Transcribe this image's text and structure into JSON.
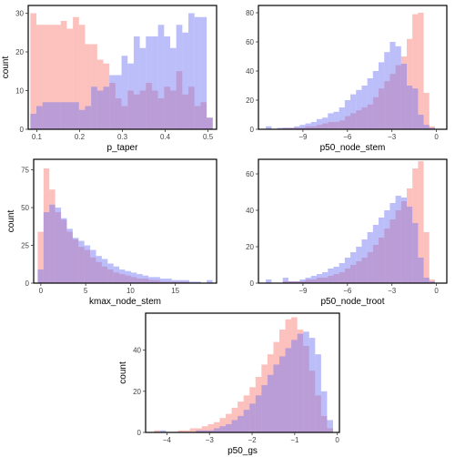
{
  "colors": {
    "series_a": "#f8766d",
    "series_b": "#6a6ff5",
    "overlap_alpha": 0.45,
    "frame": "#000000",
    "tick_text": "#444444"
  },
  "chart_data": [
    {
      "type": "bar",
      "variant": "overlaid-histogram",
      "xlabel": "p_taper",
      "ylabel": "count",
      "xlim": [
        0.08,
        0.52
      ],
      "ylim": [
        0,
        32
      ],
      "xticks": [
        0.1,
        0.2,
        0.3,
        0.4,
        0.5
      ],
      "xtick_labels": [
        "0.1",
        "0.2",
        "0.3",
        "0.4",
        "0.5"
      ],
      "yticks": [
        0,
        10,
        20,
        30
      ],
      "bin_start": 0.085,
      "bin_width": 0.0142,
      "series": [
        {
          "values": [
            30,
            27,
            27,
            27,
            27,
            28,
            26,
            29,
            27,
            22,
            22,
            18,
            17,
            12,
            8,
            6,
            10,
            9,
            10,
            12,
            10,
            8,
            11,
            10,
            15,
            9,
            11,
            6,
            7,
            3
          ]
        },
        {
          "values": [
            4,
            6,
            7,
            7,
            7,
            7,
            7,
            7,
            5,
            6,
            11,
            10,
            11,
            14,
            14,
            19,
            17,
            24,
            21,
            24,
            24,
            27,
            24,
            21,
            27,
            25,
            30,
            29,
            29,
            3
          ]
        }
      ]
    },
    {
      "type": "bar",
      "variant": "overlaid-histogram",
      "xlabel": "p50_node_stem",
      "ylabel": "",
      "xlim": [
        -12,
        0.7
      ],
      "ylim": [
        0,
        85
      ],
      "xticks": [
        -9,
        -6,
        -3,
        0
      ],
      "xtick_labels": [
        "−9",
        "−6",
        "−3",
        "0"
      ],
      "yticks": [
        0,
        20,
        40,
        60,
        80
      ],
      "bin_start": -11.5,
      "bin_width": 0.38,
      "series": [
        {
          "values": [
            0,
            0,
            0,
            1,
            1,
            1,
            1,
            2,
            2,
            3,
            4,
            5,
            5,
            6,
            9,
            11,
            13,
            15,
            17,
            22,
            28,
            33,
            38,
            44,
            50,
            62,
            79,
            80,
            25,
            2
          ]
        },
        {
          "values": [
            2,
            0,
            1,
            1,
            1,
            2,
            3,
            4,
            5,
            7,
            8,
            11,
            12,
            15,
            20,
            24,
            27,
            30,
            35,
            40,
            46,
            53,
            60,
            57,
            45,
            30,
            28,
            10,
            3,
            1
          ]
        }
      ]
    },
    {
      "type": "bar",
      "variant": "overlaid-histogram",
      "xlabel": "kmax_node_stem",
      "ylabel": "count",
      "xlim": [
        -0.8,
        19.6
      ],
      "ylim": [
        0,
        82
      ],
      "xticks": [
        0,
        5,
        10,
        15
      ],
      "xtick_labels": [
        "0",
        "5",
        "10",
        "15"
      ],
      "yticks": [
        0,
        25,
        50,
        75
      ],
      "bin_start": -0.35,
      "bin_width": 0.65,
      "series": [
        {
          "values": [
            34,
            76,
            62,
            47,
            42,
            34,
            29,
            24,
            22,
            17,
            14,
            11,
            9,
            7,
            6,
            5,
            4,
            3,
            3,
            2,
            2,
            1,
            1,
            1,
            1,
            1,
            0,
            0,
            0,
            0
          ]
        },
        {
          "values": [
            9,
            47,
            52,
            50,
            43,
            36,
            30,
            28,
            25,
            22,
            18,
            16,
            13,
            11,
            9,
            8,
            7,
            6,
            5,
            4,
            4,
            3,
            3,
            2,
            2,
            2,
            1,
            1,
            0,
            2
          ]
        }
      ]
    },
    {
      "type": "bar",
      "variant": "overlaid-histogram",
      "xlabel": "p50_node_troot",
      "ylabel": "",
      "xlim": [
        -12,
        0.7
      ],
      "ylim": [
        0,
        68
      ],
      "xticks": [
        -9,
        -6,
        -3,
        0
      ],
      "xtick_labels": [
        "−9",
        "−6",
        "−3",
        "0"
      ],
      "yticks": [
        0,
        20,
        40,
        60
      ],
      "bin_start": -11.5,
      "bin_width": 0.38,
      "series": [
        {
          "values": [
            0,
            0,
            0,
            1,
            1,
            1,
            1,
            2,
            2,
            3,
            3,
            4,
            5,
            6,
            8,
            10,
            12,
            14,
            17,
            21,
            25,
            30,
            35,
            40,
            45,
            52,
            63,
            67,
            28,
            2
          ]
        },
        {
          "values": [
            2,
            0,
            0,
            3,
            1,
            1,
            2,
            3,
            4,
            5,
            6,
            8,
            9,
            11,
            14,
            17,
            20,
            24,
            28,
            32,
            36,
            40,
            44,
            48,
            47,
            42,
            33,
            14,
            3,
            1
          ]
        }
      ]
    },
    {
      "type": "bar",
      "variant": "overlaid-histogram",
      "xlabel": "p50_gs",
      "ylabel": "count",
      "xlim": [
        -4.5,
        0.05
      ],
      "ylim": [
        0,
        58
      ],
      "xticks": [
        -4,
        -3,
        -2,
        -1,
        0
      ],
      "xtick_labels": [
        "−4",
        "−3",
        "−2",
        "−1",
        "0"
      ],
      "yticks": [
        0,
        20,
        40
      ],
      "bin_start": -4.3,
      "bin_width": 0.14,
      "series": [
        {
          "values": [
            1,
            0,
            0,
            0,
            1,
            1,
            2,
            2,
            3,
            4,
            5,
            7,
            9,
            12,
            15,
            18,
            22,
            27,
            33,
            38,
            44,
            50,
            55,
            56,
            50,
            42,
            30,
            18,
            8,
            2
          ]
        },
        {
          "values": [
            0,
            1,
            0,
            0,
            0,
            0,
            0,
            1,
            1,
            1,
            2,
            3,
            4,
            6,
            8,
            11,
            14,
            18,
            23,
            28,
            33,
            37,
            41,
            45,
            48,
            49,
            46,
            38,
            20,
            6
          ]
        }
      ]
    }
  ]
}
